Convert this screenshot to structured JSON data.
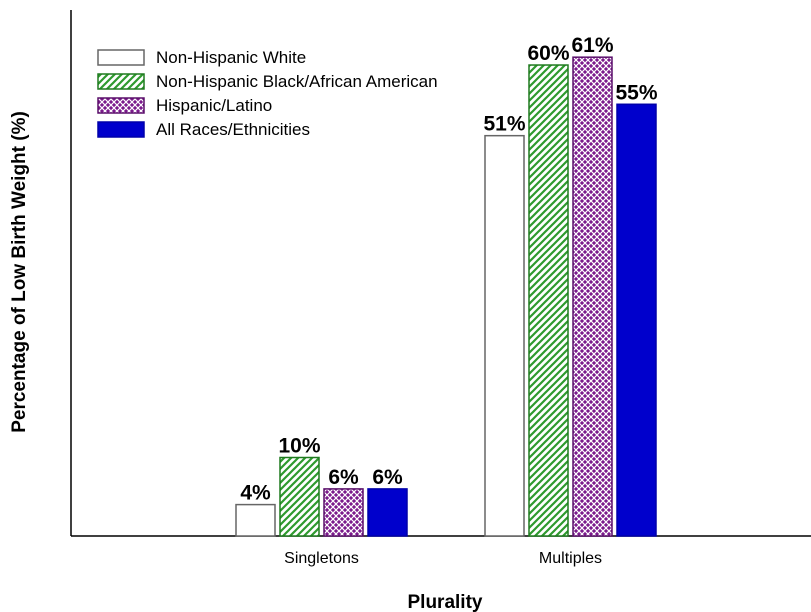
{
  "chart_data": {
    "type": "bar",
    "title": "",
    "xlabel": "Plurality",
    "ylabel": "Percentage of Low Birth Weight (%)",
    "ylim": [
      0,
      65
    ],
    "grid": false,
    "legend_position": "top-left",
    "categories": [
      "Singletons",
      "Multiples"
    ],
    "series": [
      {
        "name": "Non-Hispanic White",
        "values": [
          4,
          51
        ],
        "labels": [
          "4%",
          "51%"
        ],
        "fill": "#ffffff",
        "stroke": "#666666",
        "pattern": "none"
      },
      {
        "name": "Non-Hispanic Black/African American",
        "values": [
          10,
          60
        ],
        "labels": [
          "10%",
          "60%"
        ],
        "fill": "#2e9a2e",
        "stroke": "#1f7a1f",
        "pattern": "diagonal-stripes"
      },
      {
        "name": "Hispanic/Latino",
        "values": [
          6,
          61
        ],
        "labels": [
          "6%",
          "61%"
        ],
        "fill": "#7b1a8c",
        "stroke": "#5a0f6a",
        "pattern": "crosshatch"
      },
      {
        "name": "All Races/Ethnicities",
        "values": [
          6,
          55
        ],
        "labels": [
          "6%",
          "55%"
        ],
        "fill": "#0000cc",
        "stroke": "#0000aa",
        "pattern": "solid"
      }
    ]
  }
}
